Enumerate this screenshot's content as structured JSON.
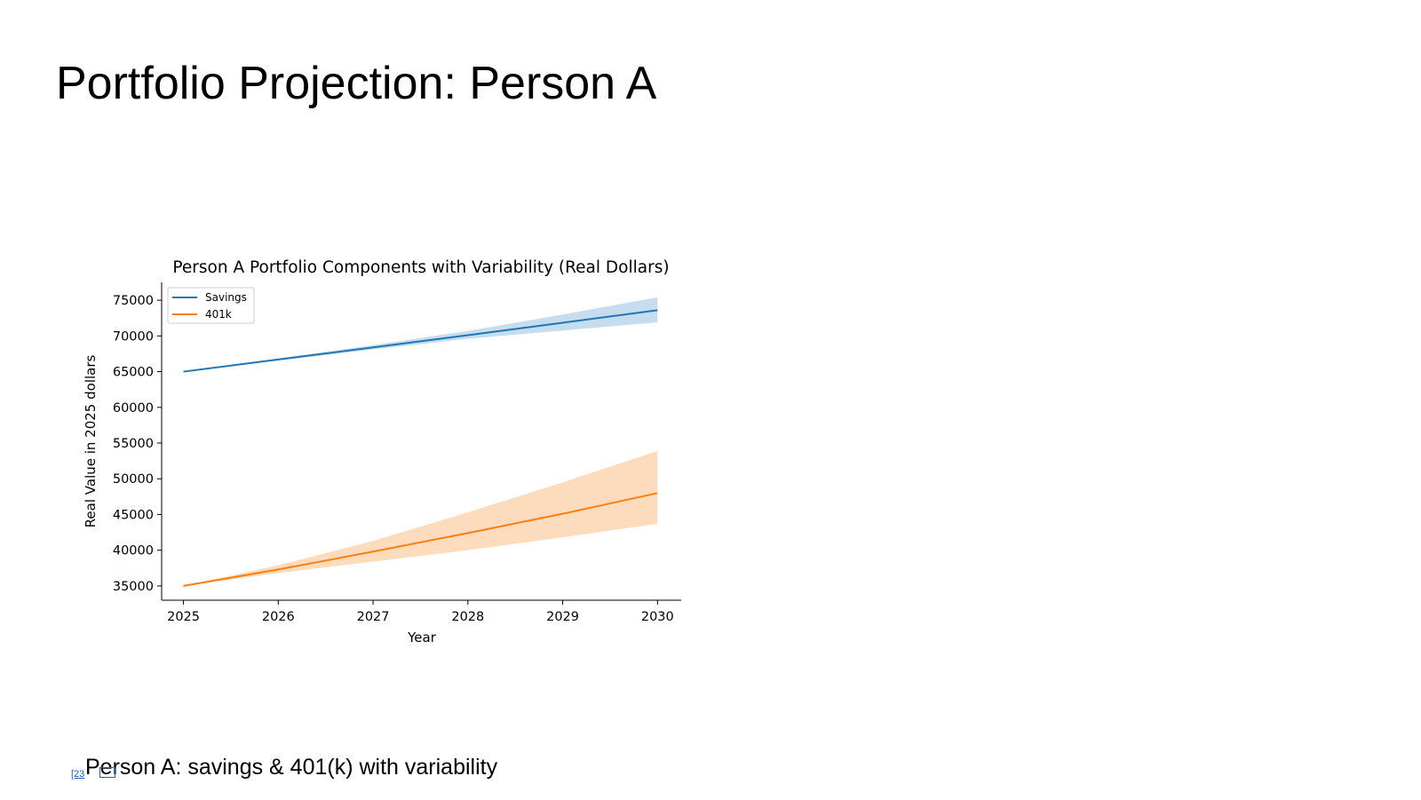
{
  "slide": {
    "title": "Portfolio Projection: Person A",
    "caption": "Person A: savings & 401(k) with variability",
    "refs": [
      "[23",
      "[24"
    ]
  },
  "chart_data": {
    "type": "line",
    "title": "Person A Portfolio Components with Variability (Real Dollars)",
    "xlabel": "Year",
    "ylabel": "Real Value in 2025 dollars",
    "x": [
      2025,
      2026,
      2027,
      2028,
      2029,
      2030
    ],
    "xlim": [
      2024.77,
      2030.25
    ],
    "ylim": [
      33000,
      77500
    ],
    "yticks": [
      35000,
      40000,
      45000,
      50000,
      55000,
      60000,
      65000,
      70000,
      75000
    ],
    "xticks": [
      2025,
      2026,
      2027,
      2028,
      2029,
      2030
    ],
    "legend_position": "upper-left",
    "grid": false,
    "series": [
      {
        "name": "Savings",
        "color": "#1f77b4",
        "band_color": "#c6dcef",
        "values": [
          65000,
          66700,
          68400,
          70100,
          71850,
          73600
        ],
        "lower": [
          65000,
          66550,
          68100,
          69600,
          70750,
          71900
        ],
        "upper": [
          65000,
          66850,
          68700,
          70700,
          73000,
          75400
        ]
      },
      {
        "name": "401k",
        "color": "#ff7f0e",
        "band_color": "#fddbbd",
        "values": [
          35000,
          37300,
          39800,
          42400,
          45100,
          48000
        ],
        "lower": [
          35000,
          36800,
          38400,
          40000,
          41800,
          43700
        ],
        "upper": [
          35000,
          37900,
          41300,
          45300,
          49500,
          53900
        ]
      }
    ]
  }
}
